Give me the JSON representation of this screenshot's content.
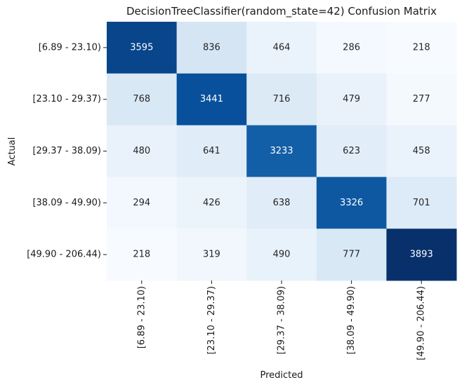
{
  "chart_data": {
    "type": "heatmap",
    "title": "DecisionTreeClassifier(random_state=42) Confusion Matrix",
    "xlabel": "Predicted",
    "ylabel": "Actual",
    "x_categories": [
      "[6.89 - 23.10)",
      "[23.10 - 29.37)",
      "[29.37 - 38.09)",
      "[38.09 - 49.90)",
      "[49.90 - 206.44)"
    ],
    "y_categories": [
      "[6.89 - 23.10)",
      "[23.10 - 29.37)",
      "[29.37 - 38.09)",
      "[38.09 - 49.90)",
      "[49.90 - 206.44)"
    ],
    "values": [
      [
        3595,
        836,
        464,
        286,
        218
      ],
      [
        768,
        3441,
        716,
        479,
        277
      ],
      [
        480,
        641,
        3233,
        623,
        458
      ],
      [
        294,
        426,
        638,
        3326,
        701
      ],
      [
        218,
        319,
        490,
        777,
        3893
      ]
    ],
    "colormap": "Blues",
    "colorbar": false,
    "annotations": true
  }
}
